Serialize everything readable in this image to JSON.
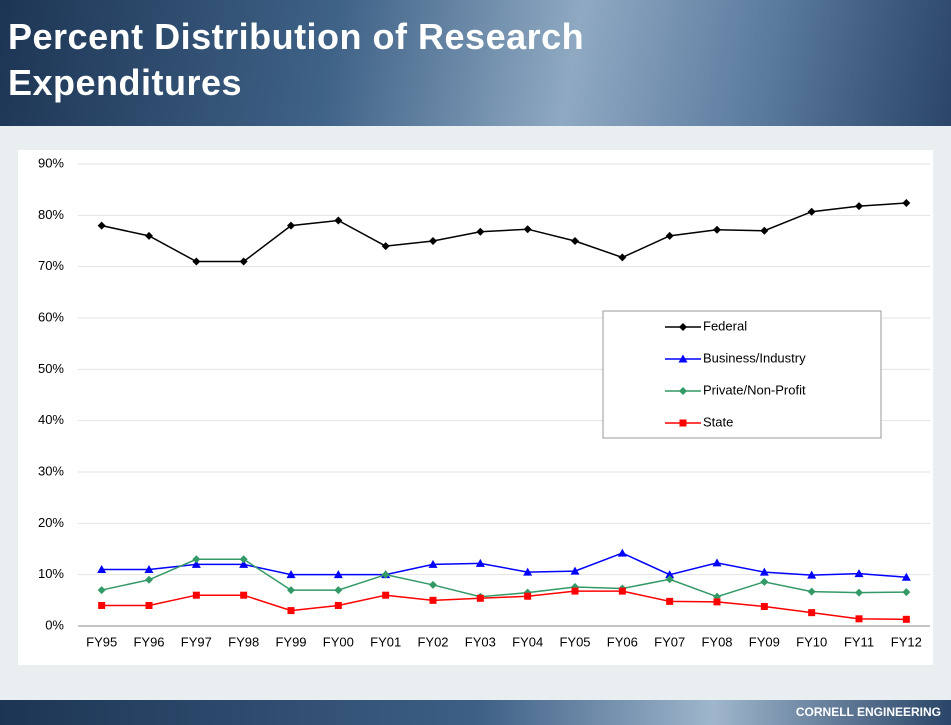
{
  "header": {
    "title": "Percent Distribution of Research Expenditures"
  },
  "footer": {
    "brand": "CORNELL ENGINEERING"
  },
  "chart_data": {
    "type": "line",
    "categories": [
      "FY95",
      "FY96",
      "FY97",
      "FY98",
      "FY99",
      "FY00",
      "FY01",
      "FY02",
      "FY03",
      "FY04",
      "FY05",
      "FY06",
      "FY07",
      "FY08",
      "FY09",
      "FY10",
      "FY11",
      "FY12"
    ],
    "series": [
      {
        "name": "Federal",
        "color": "#000000",
        "marker": "diamond",
        "values": [
          78,
          76,
          71,
          71,
          78,
          79,
          74,
          75,
          76.8,
          77.3,
          75,
          71.8,
          76,
          77.2,
          77,
          80.7,
          81.8,
          82.4
        ]
      },
      {
        "name": "Business/Industry",
        "color": "#0000ff",
        "marker": "triangle",
        "values": [
          11,
          11,
          12,
          12,
          10,
          10,
          10,
          12,
          12.2,
          10.5,
          10.7,
          14.2,
          10,
          12.3,
          10.5,
          9.9,
          10.2,
          9.5
        ]
      },
      {
        "name": "Private/Non-Profit",
        "color": "#339966",
        "marker": "diamond",
        "values": [
          7,
          9,
          13,
          13,
          7,
          7,
          10,
          8,
          5.7,
          6.5,
          7.6,
          7.3,
          9.1,
          5.7,
          8.6,
          6.7,
          6.5,
          6.6
        ]
      },
      {
        "name": "State",
        "color": "#ff0000",
        "marker": "square",
        "values": [
          4,
          4,
          6,
          6,
          3,
          4,
          6,
          5,
          5.4,
          5.8,
          6.8,
          6.8,
          4.8,
          4.7,
          3.8,
          2.6,
          1.4,
          1.3
        ]
      }
    ],
    "ylim": [
      0,
      90
    ],
    "yticks": [
      {
        "value": 0,
        "label": "0%"
      },
      {
        "value": 10,
        "label": "10%"
      },
      {
        "value": 20,
        "label": "20%"
      },
      {
        "value": 30,
        "label": "30%"
      },
      {
        "value": 40,
        "label": "40%"
      },
      {
        "value": 50,
        "label": "50%"
      },
      {
        "value": 60,
        "label": "60%"
      },
      {
        "value": 70,
        "label": "70%"
      },
      {
        "value": 80,
        "label": "80%"
      },
      {
        "value": 90,
        "label": "90%"
      }
    ],
    "grid": true,
    "legend": "right"
  }
}
